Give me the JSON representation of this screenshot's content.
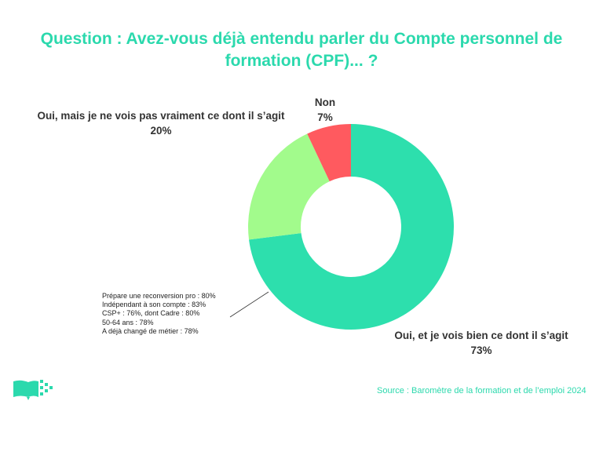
{
  "title_line1": "Question : Avez-vous déjà entendu parler du Compte personnel de",
  "title_line2": "formation (CPF)... ?",
  "chart_data": {
    "type": "pie",
    "donut": true,
    "slices": [
      {
        "label": "Oui, et je vois bien ce dont il s’agit",
        "value": 73,
        "display": "73%",
        "color": "#2ddfad"
      },
      {
        "label": "Oui, mais je ne vois pas vraiment ce dont il s’agit",
        "value": 20,
        "display": "20%",
        "color": "#a2fb8c"
      },
      {
        "label": "Non",
        "value": 7,
        "display": "7%",
        "color": "#ff5a5f"
      }
    ]
  },
  "annotation": {
    "lines": [
      "Prépare une reconversion pro : 80%",
      "Indépendant à son compte : 83%",
      "CSP+ : 76%, dont Cadre : 80%",
      "50-64 ans : 78%",
      "A déjà changé de métier : 78%"
    ]
  },
  "source": "Source : Baromètre de la formation et de l’emploi 2024",
  "colors": {
    "accent": "#2bd9ad",
    "text": "#333333"
  },
  "logo_icon": "book-pixel-logo-icon"
}
